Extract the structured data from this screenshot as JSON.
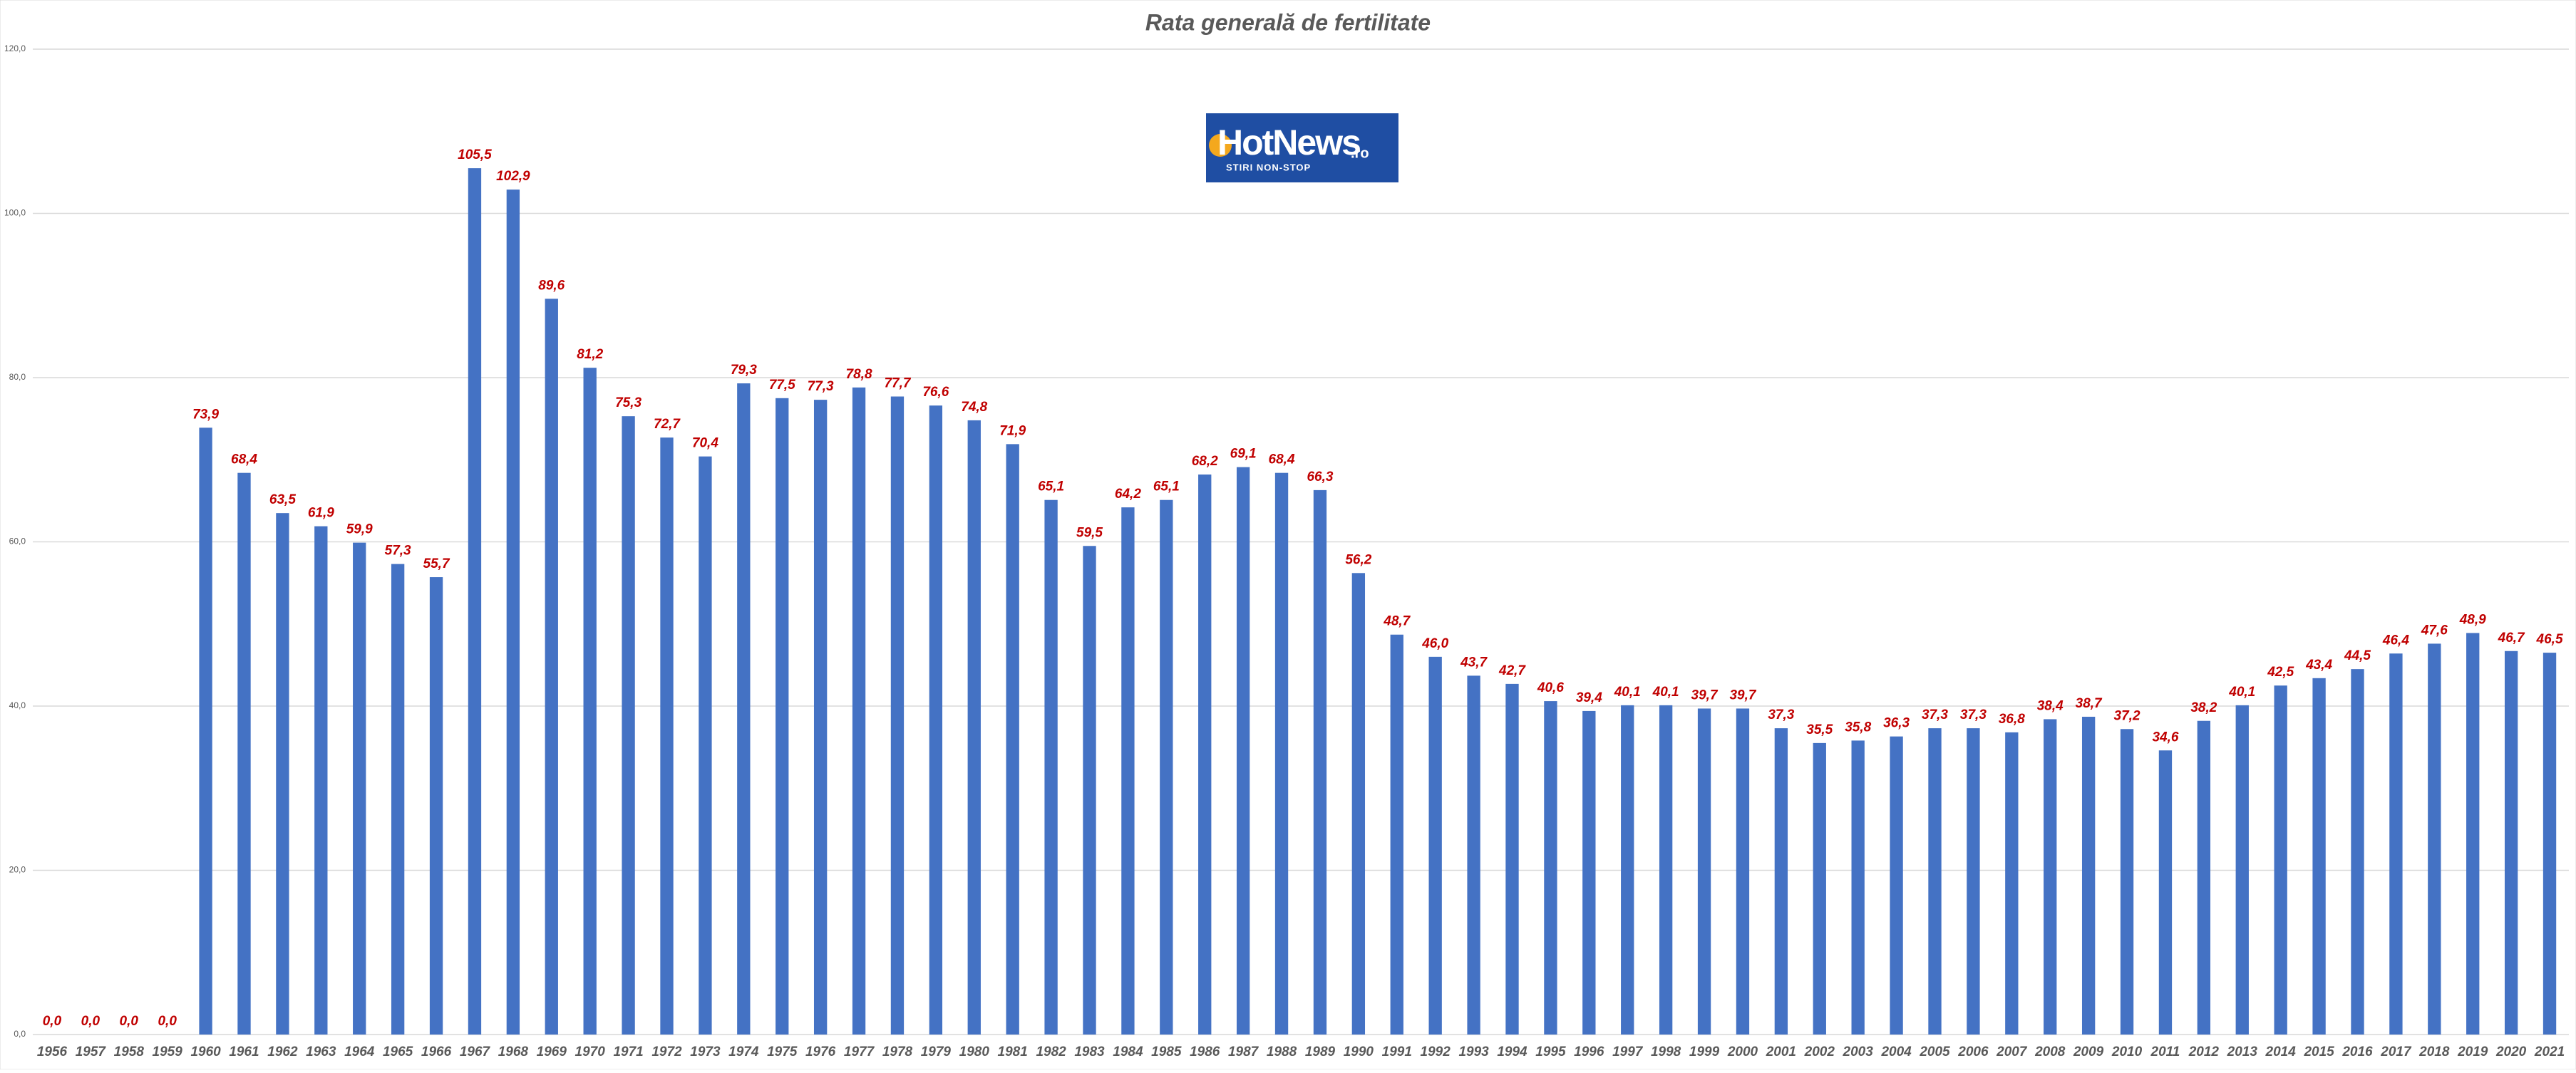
{
  "chart_data": {
    "type": "bar",
    "title": "Rata generală de fertilitate",
    "categories": [
      "1956",
      "1957",
      "1958",
      "1959",
      "1960",
      "1961",
      "1962",
      "1963",
      "1964",
      "1965",
      "1966",
      "1967",
      "1968",
      "1969",
      "1970",
      "1971",
      "1972",
      "1973",
      "1974",
      "1975",
      "1976",
      "1977",
      "1978",
      "1979",
      "1980",
      "1981",
      "1982",
      "1983",
      "1984",
      "1985",
      "1986",
      "1987",
      "1988",
      "1989",
      "1990",
      "1991",
      "1992",
      "1993",
      "1994",
      "1995",
      "1996",
      "1997",
      "1998",
      "1999",
      "2000",
      "2001",
      "2002",
      "2003",
      "2004",
      "2005",
      "2006",
      "2007",
      "2008",
      "2009",
      "2010",
      "2011",
      "2012",
      "2013",
      "2014",
      "2015",
      "2016",
      "2017",
      "2018",
      "2019",
      "2020",
      "2021"
    ],
    "values": [
      0,
      0,
      0,
      0,
      73.9,
      68.4,
      63.5,
      61.9,
      59.9,
      57.3,
      55.7,
      105.5,
      102.9,
      89.6,
      81.2,
      75.3,
      72.7,
      70.4,
      79.3,
      77.5,
      77.3,
      78.8,
      77.7,
      76.6,
      74.8,
      71.9,
      65.1,
      59.5,
      64.2,
      65.1,
      68.2,
      69.1,
      68.4,
      66.3,
      56.2,
      48.7,
      46.0,
      43.7,
      42.7,
      40.6,
      39.4,
      40.1,
      40.1,
      39.7,
      39.7,
      37.3,
      35.5,
      35.8,
      36.3,
      37.3,
      37.3,
      36.8,
      38.4,
      38.7,
      37.2,
      34.6,
      38.2,
      40.1,
      42.5,
      43.4,
      44.5,
      46.4,
      47.6,
      48.9,
      46.7,
      46.5
    ],
    "value_labels": [
      "0,0",
      "0,0",
      "0,0",
      "0,0",
      "73,9",
      "68,4",
      "63,5",
      "61,9",
      "59,9",
      "57,3",
      "55,7",
      "105,5",
      "102,9",
      "89,6",
      "81,2",
      "75,3",
      "72,7",
      "70,4",
      "79,3",
      "77,5",
      "77,3",
      "78,8",
      "77,7",
      "76,6",
      "74,8",
      "71,9",
      "65,1",
      "59,5",
      "64,2",
      "65,1",
      "68,2",
      "69,1",
      "68,4",
      "66,3",
      "56,2",
      "48,7",
      "46,0",
      "43,7",
      "42,7",
      "40,6",
      "39,4",
      "40,1",
      "40,1",
      "39,7",
      "39,7",
      "37,3",
      "35,5",
      "35,8",
      "36,3",
      "37,3",
      "37,3",
      "36,8",
      "38,4",
      "38,7",
      "37,2",
      "34,6",
      "38,2",
      "40,1",
      "42,5",
      "43,4",
      "44,5",
      "46,4",
      "47,6",
      "48,9",
      "46,7",
      "46,5"
    ],
    "color": "#4472c4",
    "label_color": "#c00000",
    "ylim": [
      0,
      120
    ],
    "yticks": [
      {
        "value": 0,
        "label": "0,0"
      },
      {
        "value": 20,
        "label": "20,0"
      },
      {
        "value": 40,
        "label": "40,0"
      },
      {
        "value": 60,
        "label": "60,0"
      },
      {
        "value": 80,
        "label": "80,0"
      },
      {
        "value": 100,
        "label": "100,0"
      },
      {
        "value": 120,
        "label": "120,0"
      }
    ],
    "grid": true
  },
  "logo": {
    "name": "HotNews",
    "suffix": ".ro",
    "tagline": "STIRI NON-STOP"
  }
}
